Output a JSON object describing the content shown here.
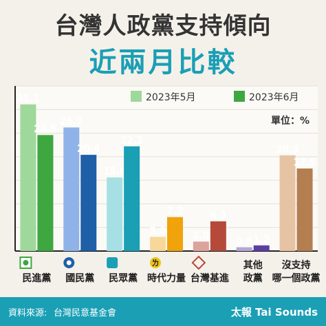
{
  "header": {
    "title_line1": "台灣人政黨支持傾向",
    "title_line2": "近兩月比較"
  },
  "footer": {
    "source_label": "資料來源:",
    "source_value": "台灣民意基金會",
    "brand": "太報 Tai Sounds"
  },
  "unit_label": "單位：%",
  "colors": {
    "accent": "#1a9fb5",
    "background": "#f4f1ea"
  },
  "chart_data": {
    "type": "bar",
    "categories": [
      "民進黨",
      "國民黨",
      "民眾黨",
      "時代力量",
      "台灣基進",
      "其他政黨",
      "沒支持哪一個政黨"
    ],
    "category_display": [
      [
        "民進黨"
      ],
      [
        "國民黨"
      ],
      [
        "民眾黨"
      ],
      [
        "時代力量"
      ],
      [
        "台灣基進"
      ],
      [
        "其他",
        "政黨"
      ],
      [
        "沒支持",
        "哪一個政黨"
      ]
    ],
    "category_icons": [
      "dpp-logo-icon",
      "kmt-logo-icon",
      "tpp-logo-icon",
      "npp-logo-icon",
      "tsp-logo-icon",
      "",
      ""
    ],
    "series": [
      {
        "name": "2023年5月",
        "values": [
          31.1,
          26.2,
          15.6,
          3.0,
          2.0,
          0.8,
          20.3
        ]
      },
      {
        "name": "2023年6月",
        "values": [
          24.6,
          20.4,
          22.2,
          7.2,
          6.3,
          1.2,
          17.5
        ]
      }
    ],
    "series_colors": [
      [
        "#9fd89b",
        "#8fb3e8",
        "#a6e0e4",
        "#f7d79a",
        "#dba39b",
        "#b4a6d6",
        "#e6c4a3"
      ],
      [
        "#3ea740",
        "#1f5fa7",
        "#1a9fb5",
        "#f0a30a",
        "#b54a3a",
        "#5c3fa3",
        "#b47f50"
      ]
    ],
    "legend": {
      "colors": [
        "#9fd89b",
        "#3ea740"
      ],
      "position": "top-right"
    },
    "ylim": [
      0,
      35
    ],
    "grid": true,
    "unit": "%"
  }
}
